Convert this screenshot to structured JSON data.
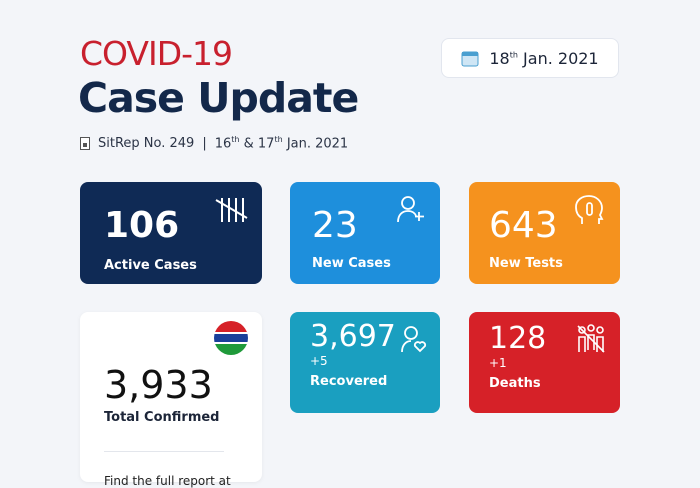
{
  "header": {
    "title_line1": "COVID-19",
    "title_line2": "Case Update",
    "sitrep": "SitRep No. 249",
    "separator": "|",
    "period_day1": "16",
    "period_sup1": "th",
    "period_amp": "&",
    "period_day2": "17",
    "period_sup2": "th",
    "period_rest": "Jan. 2021"
  },
  "date_badge": {
    "day": "18",
    "sup": "th",
    "rest": "Jan. 2021",
    "icon": "calendar-icon"
  },
  "cards": {
    "active": {
      "value": "106",
      "label": "Active Cases",
      "color": "#0f2a55",
      "icon": "tally-icon"
    },
    "new_cases": {
      "value": "23",
      "label": "New Cases",
      "color": "#1e8fdc",
      "icon": "user-plus-icon"
    },
    "new_tests": {
      "value": "643",
      "label": "New Tests",
      "color": "#f5921e",
      "icon": "head-thermometer-icon"
    },
    "total": {
      "value": "3,933",
      "label": "Total Confirmed",
      "footer": "Find the full report at",
      "icon": "gambia-flag-icon"
    },
    "recovered": {
      "value": "3,697",
      "delta": "+5",
      "label": "Recovered",
      "color": "#1a9fc0",
      "icon": "user-heart-icon"
    },
    "deaths": {
      "value": "128",
      "delta": "+1",
      "label": "Deaths",
      "color": "#d62128",
      "icon": "people-icon"
    }
  }
}
